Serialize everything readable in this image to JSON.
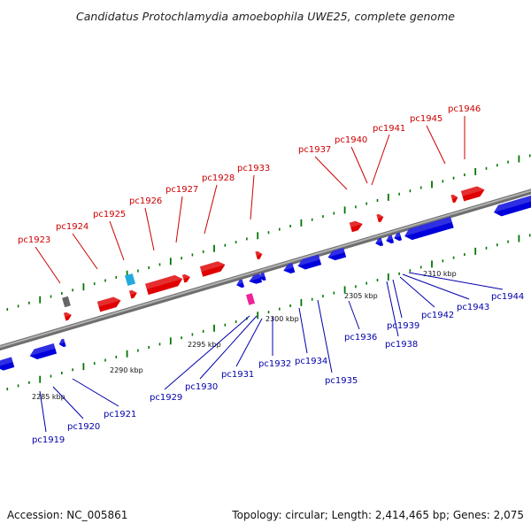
{
  "title": "Candidatus Protochlamydia amoebophila UWE25, complete genome",
  "accession": "Accession: NC_005861",
  "topology": "Topology: circular; Length: 2,414,465 bp; Genes: 2,075",
  "colors": {
    "forward": "#e00000",
    "reverse": "#0000dd",
    "forward_label": "#cc0000",
    "reverse_label": "#0000aa",
    "backbone": "#8a8a8a",
    "tick": "#007700",
    "rna_gray": "#666666",
    "rna_cyan": "#22aadd",
    "rna_magenta": "#ee2299"
  },
  "scale_labels": [
    "2285 kbp",
    "2290 kbp",
    "2295 kbp",
    "2300 kbp",
    "2305 kbp",
    "2310 kbp"
  ],
  "forward_labels": [
    "pc1923",
    "pc1924",
    "pc1925",
    "pc1926",
    "pc1927",
    "pc1928",
    "pc1933",
    "pc1937",
    "pc1940",
    "pc1941",
    "pc1945",
    "pc1946"
  ],
  "reverse_labels": [
    "pc1919",
    "pc1920",
    "pc1921",
    "pc1929",
    "pc1930",
    "pc1931",
    "pc1932",
    "pc1934",
    "pc1935",
    "pc1936",
    "pc1938",
    "pc1939",
    "pc1942",
    "pc1943",
    "pc1944"
  ]
}
